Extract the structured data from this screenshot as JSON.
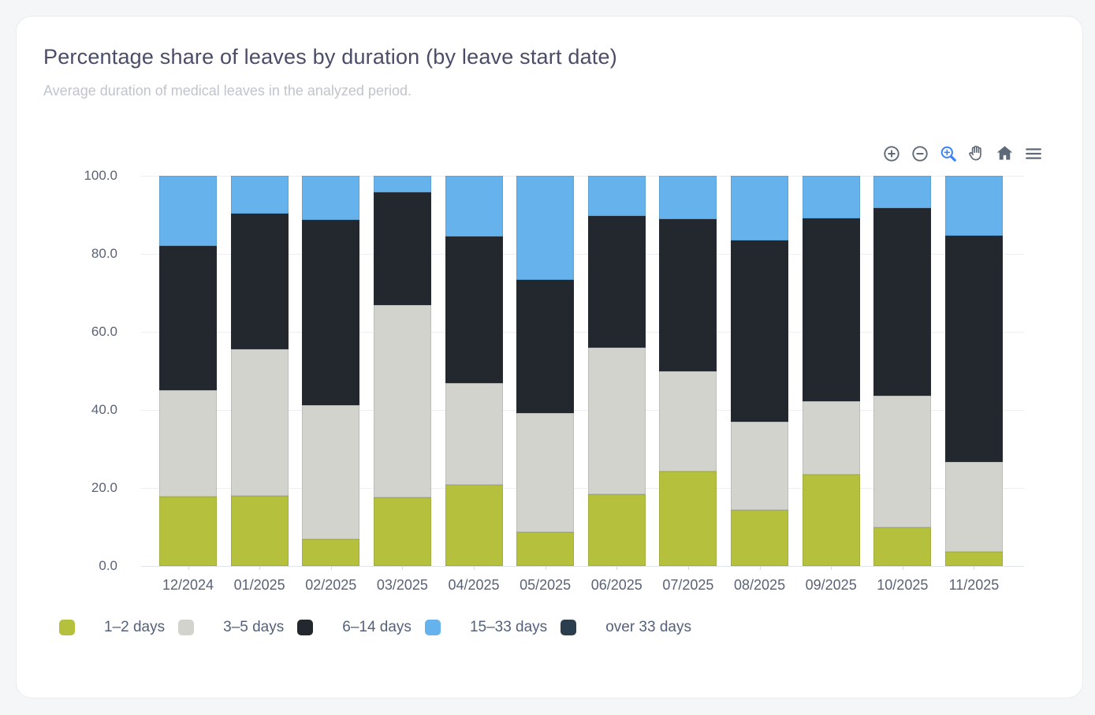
{
  "page": {
    "background": "#f5f6f8"
  },
  "card": {
    "title": "Percentage share of leaves by duration (by leave start date)",
    "subtitle": "Average duration of medical leaves in the analyzed period."
  },
  "toolbar": {
    "icon_color": "#5f6a79",
    "active_color": "#3b82f6",
    "icons": [
      "zoom-in-icon",
      "zoom-out-icon",
      "box-zoom-icon",
      "pan-icon",
      "reset-home-icon",
      "menu-icon"
    ],
    "active_icon": "box-zoom-icon"
  },
  "chart_data": {
    "type": "bar",
    "stacked": true,
    "title": "Percentage share of leaves by duration (by leave start date)",
    "xlabel": "",
    "ylabel": "",
    "ylim": [
      0,
      100
    ],
    "yticks": [
      "100.0",
      "80.0",
      "60.0",
      "40.0",
      "20.0",
      "0.0"
    ],
    "grid": true,
    "legend_position": "bottom",
    "categories": [
      "12/2024",
      "01/2025",
      "02/2025",
      "03/2025",
      "04/2025",
      "05/2025",
      "06/2025",
      "07/2025",
      "08/2025",
      "09/2025",
      "10/2025",
      "11/2025"
    ],
    "series": [
      {
        "name": "1–2 days",
        "color": "#b5c13c",
        "values": [
          17.8,
          18.0,
          6.9,
          17.6,
          20.9,
          8.7,
          18.4,
          24.3,
          14.4,
          23.4,
          9.9,
          3.6
        ]
      },
      {
        "name": "3–5 days",
        "color": "#d2d3cc",
        "values": [
          27.3,
          37.5,
          34.4,
          49.2,
          25.9,
          30.4,
          37.5,
          25.7,
          22.6,
          18.8,
          33.7,
          23.1
        ]
      },
      {
        "name": "6–14 days",
        "color": "#23282f",
        "values": [
          37.0,
          34.8,
          47.3,
          28.9,
          37.6,
          34.2,
          33.8,
          38.9,
          46.4,
          46.9,
          48.1,
          57.9
        ]
      },
      {
        "name": "15–33 days",
        "color": "#66b2ec",
        "values": [
          17.9,
          9.7,
          11.4,
          4.3,
          15.6,
          26.7,
          10.3,
          11.1,
          16.6,
          10.9,
          8.3,
          15.4
        ]
      },
      {
        "name": "over 33 days",
        "color": "#2b3e4d",
        "values": [
          0,
          0,
          0,
          0,
          0,
          0,
          0,
          0,
          0,
          0,
          0,
          0
        ]
      }
    ]
  }
}
